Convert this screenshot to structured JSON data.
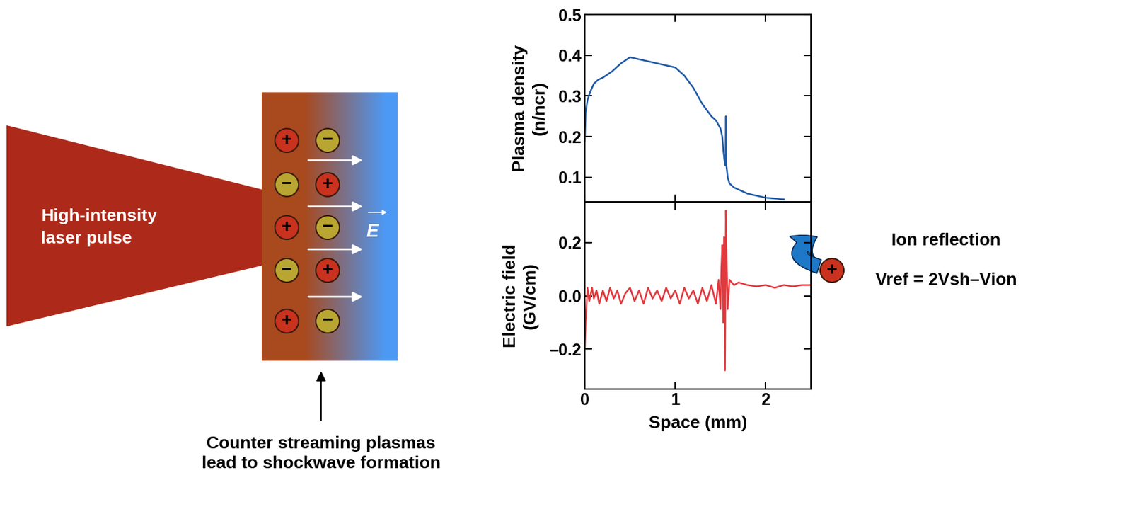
{
  "chart_data": [
    {
      "type": "line",
      "ylabel": "Plasma density\n(n/ncr)",
      "color": "#1f5aa6",
      "x": [
        0,
        0.01,
        0.03,
        0.06,
        0.1,
        0.15,
        0.2,
        0.3,
        0.4,
        0.5,
        0.6,
        0.7,
        0.8,
        0.9,
        1.0,
        1.05,
        1.1,
        1.15,
        1.2,
        1.25,
        1.3,
        1.35,
        1.4,
        1.45,
        1.5,
        1.52,
        1.53,
        1.55,
        1.555,
        1.56,
        1.565,
        1.58,
        1.6,
        1.65,
        1.7,
        1.8,
        1.9,
        2.0,
        2.1,
        2.2
      ],
      "values": [
        0.19,
        0.26,
        0.29,
        0.31,
        0.33,
        0.34,
        0.345,
        0.36,
        0.38,
        0.395,
        0.39,
        0.385,
        0.38,
        0.375,
        0.37,
        0.36,
        0.35,
        0.335,
        0.32,
        0.3,
        0.28,
        0.265,
        0.25,
        0.24,
        0.22,
        0.2,
        0.17,
        0.13,
        0.13,
        0.25,
        0.13,
        0.1,
        0.085,
        0.075,
        0.07,
        0.06,
        0.055,
        0.05,
        0.048,
        0.046
      ],
      "xlim": [
        0,
        2.5
      ],
      "xticks": [
        0,
        1,
        2
      ],
      "ylim": [
        0.04,
        0.5
      ],
      "yticks": [
        0.1,
        0.2,
        0.3,
        0.4,
        0.5
      ],
      "tick_labels": "y"
    },
    {
      "type": "line",
      "ylabel": "Electric field\n(GV/cm)",
      "xlabel": "Space (mm)",
      "color": "#e0393e",
      "x": [
        0,
        0.01,
        0.03,
        0.05,
        0.08,
        0.1,
        0.13,
        0.16,
        0.2,
        0.24,
        0.28,
        0.32,
        0.36,
        0.4,
        0.45,
        0.5,
        0.55,
        0.6,
        0.65,
        0.7,
        0.75,
        0.8,
        0.85,
        0.9,
        0.95,
        1.0,
        1.05,
        1.1,
        1.15,
        1.2,
        1.25,
        1.3,
        1.35,
        1.4,
        1.45,
        1.48,
        1.5,
        1.51,
        1.52,
        1.53,
        1.54,
        1.55,
        1.56,
        1.57,
        1.58,
        1.6,
        1.65,
        1.7,
        1.8,
        1.9,
        2.0,
        2.1,
        2.2,
        2.3,
        2.4,
        2.5
      ],
      "values": [
        -0.2,
        -0.1,
        0.03,
        -0.02,
        0.03,
        -0.01,
        0.02,
        -0.03,
        0.02,
        -0.02,
        0.03,
        -0.01,
        0.02,
        -0.03,
        0.01,
        0.03,
        -0.02,
        0.02,
        -0.03,
        0.03,
        -0.01,
        0.02,
        -0.02,
        0.03,
        -0.01,
        0.02,
        -0.03,
        0.03,
        -0.01,
        0.02,
        -0.03,
        0.03,
        -0.02,
        0.04,
        -0.03,
        0.06,
        -0.05,
        0.1,
        0.19,
        -0.1,
        0.22,
        -0.28,
        0.32,
        0.1,
        -0.05,
        0.06,
        0.04,
        0.05,
        0.04,
        0.035,
        0.04,
        0.03,
        0.04,
        0.035,
        0.04,
        0.04
      ],
      "xlim": [
        0,
        2.5
      ],
      "xticks": [
        0,
        1,
        2
      ],
      "ylim": [
        -0.35,
        0.35
      ],
      "yticks": [
        {
          "value": -0.2,
          "label": "–0.2"
        },
        {
          "value": 0,
          "label": "0.0"
        },
        {
          "value": 0.2,
          "label": "0.2"
        }
      ]
    }
  ],
  "diagram": {
    "laser_label": "High-intensity\nlaser pulse",
    "field_label": "E",
    "charges": [
      [
        "+",
        "−",
        "+",
        "−",
        "+"
      ],
      [
        "−",
        "+",
        "−",
        "+",
        "−"
      ]
    ],
    "caption": "Counter streaming plasmas\nlead to shockwave formation",
    "reflection_title": "Ion reflection",
    "reflection_formula": "Vref = 2Vsh–Vion",
    "ion_sign": "+"
  }
}
